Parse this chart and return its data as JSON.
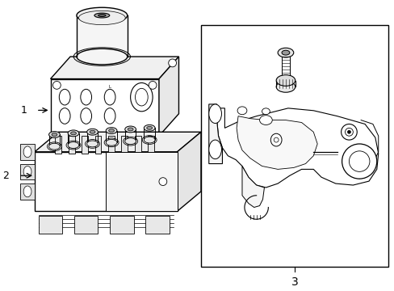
{
  "bg_color": "#ffffff",
  "line_color": "#000000",
  "label_1": "1",
  "label_2": "2",
  "label_3": "3"
}
